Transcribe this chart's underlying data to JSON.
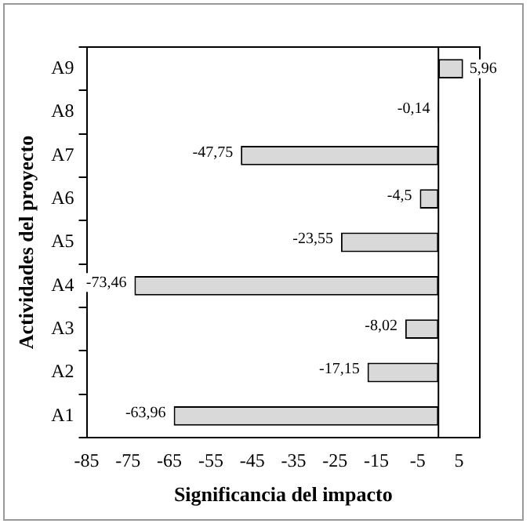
{
  "chart_data": {
    "type": "bar",
    "orientation": "horizontal",
    "xlabel": "Significancia del impacto",
    "ylabel": "Actividades del proyecto",
    "categories": [
      "A9",
      "A8",
      "A7",
      "A6",
      "A5",
      "A4",
      "A3",
      "A2",
      "A1"
    ],
    "values": [
      5.96,
      -0.14,
      -47.75,
      -4.5,
      -23.55,
      -73.46,
      -8.02,
      -17.15,
      -63.96
    ],
    "value_labels": [
      "5,96",
      "-0,14",
      "-47,75",
      "-4,5",
      "-23,55",
      "-73,46",
      "-8,02",
      "-17,15",
      "-63,96"
    ],
    "colors": [
      "#d9d9d9",
      "#000000",
      "#d9d9d9",
      "#d9d9d9",
      "#d9d9d9",
      "#d9d9d9",
      "#d9d9d9",
      "#d9d9d9",
      "#d9d9d9"
    ],
    "xlim": [
      -85,
      10
    ],
    "xticks": [
      -85,
      -75,
      -65,
      -55,
      -45,
      -35,
      -25,
      -15,
      -5,
      5
    ],
    "ref_lines": [
      {
        "axis": "x",
        "value": 0,
        "color": "#000000"
      }
    ],
    "grid": false,
    "legend": false
  }
}
